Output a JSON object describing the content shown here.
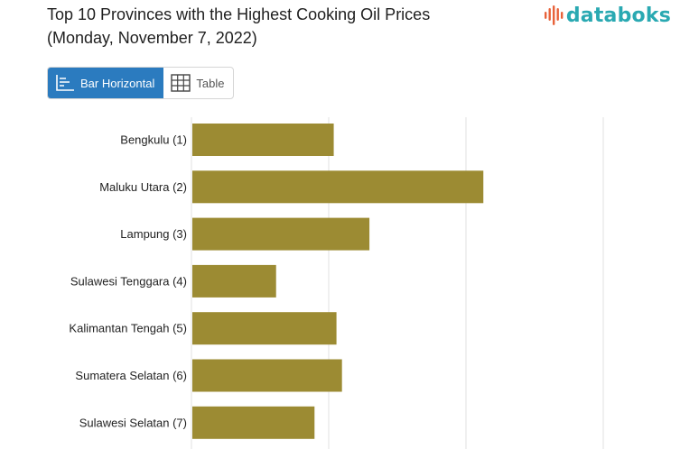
{
  "header": {
    "title_line1": "Top 10 Provinces with the Highest Cooking Oil Prices",
    "title_line2": "(Monday, November 7, 2022)",
    "logo_text": "databoks"
  },
  "view_toggle": {
    "bar_label": "Bar Horizontal",
    "table_label": "Table",
    "active": "bar"
  },
  "colors": {
    "bar": "#9c8b33",
    "grid": "#e2e2e2",
    "accent": "#2b7bbf",
    "logo": "#2aa9b2"
  },
  "chart_data": {
    "type": "bar",
    "orientation": "horizontal",
    "categories": [
      "Bengkulu (1)",
      "Maluku Utara (2)",
      "Lampung (3)",
      "Sulawesi Tenggara (4)",
      "Kalimantan Tengah (5)",
      "Sumatera Selatan (6)",
      "Sulawesi Selatan (7)"
    ],
    "values": [
      10.3,
      21.2,
      12.9,
      6.1,
      10.5,
      10.9,
      8.9
    ],
    "xlim": [
      0,
      30
    ],
    "grid": true
  }
}
